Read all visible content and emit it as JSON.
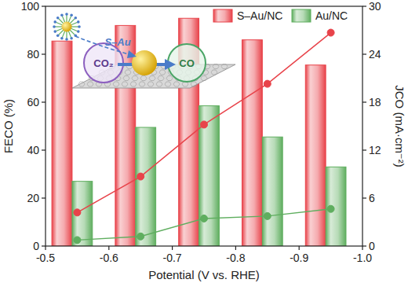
{
  "chart_data": {
    "type": "bar",
    "xlabel": "Potential (V vs. RHE)",
    "ylabel": "FECO (%)",
    "y2label": "JCO (mA·cm⁻²)",
    "x": [
      -0.55,
      -0.65,
      -0.75,
      -0.85,
      -0.95
    ],
    "xlim": [
      -0.5,
      -1.0
    ],
    "xticks": [
      -0.5,
      -0.6,
      -0.7,
      -0.8,
      -0.9,
      {
        "value": -1.0,
        "label": "-1.0"
      }
    ],
    "ylim": [
      0,
      100
    ],
    "yticks": [
      0,
      20,
      40,
      60,
      80,
      100
    ],
    "y2lim": [
      0,
      30
    ],
    "y2ticks": [
      0,
      6,
      12,
      18,
      24,
      30
    ],
    "grid": false,
    "legend": "upper right",
    "annotations": [
      "S–Au",
      "CO₂",
      "CO"
    ],
    "series": [
      {
        "name": "S–Au/NC",
        "type": "bar",
        "color": "#e8434a",
        "values": [
          85.5,
          92,
          95,
          86,
          75.5
        ]
      },
      {
        "name": "Au/NC",
        "type": "bar",
        "color": "#5fae5f",
        "values": [
          27,
          49.5,
          58.5,
          45.5,
          33
        ]
      },
      {
        "name": "S–Au/NC",
        "type": "line",
        "axis": "y2",
        "color": "#e8434a",
        "marker": "circle",
        "values": [
          4.2,
          8.7,
          15.2,
          20.3,
          26.7
        ]
      },
      {
        "name": "Au/NC",
        "type": "line",
        "axis": "y2",
        "color": "#5fae5f",
        "marker": "circle",
        "values": [
          0.75,
          1.2,
          3.45,
          3.75,
          4.65
        ]
      }
    ]
  }
}
